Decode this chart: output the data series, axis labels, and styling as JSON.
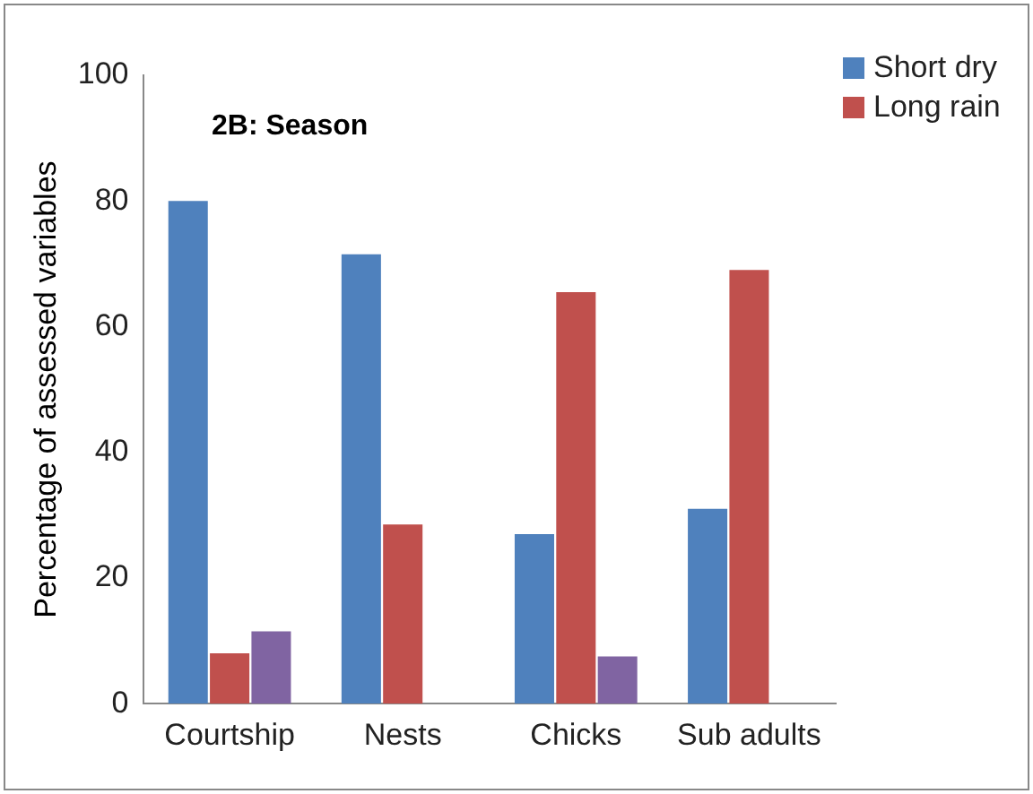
{
  "chart_data": {
    "type": "bar",
    "title": "2B: Season",
    "ylabel": "Percentage of assessed variables",
    "categories": [
      "Courtship",
      "Nests",
      "Chicks",
      "Sub adults"
    ],
    "series": [
      {
        "name": "Short dry",
        "color": "#4f81bd",
        "values": [
          80,
          71.5,
          27,
          31
        ]
      },
      {
        "name": "Long rain",
        "color": "#c0504d",
        "values": [
          8,
          28.5,
          65.5,
          69
        ]
      },
      {
        "color": "#8064a2",
        "values": [
          11.5,
          null,
          7.5,
          null
        ]
      }
    ],
    "ylim": [
      0,
      100
    ],
    "yticks": [
      0,
      20,
      40,
      60,
      80,
      100
    ],
    "grid": false,
    "legend": "top right"
  }
}
